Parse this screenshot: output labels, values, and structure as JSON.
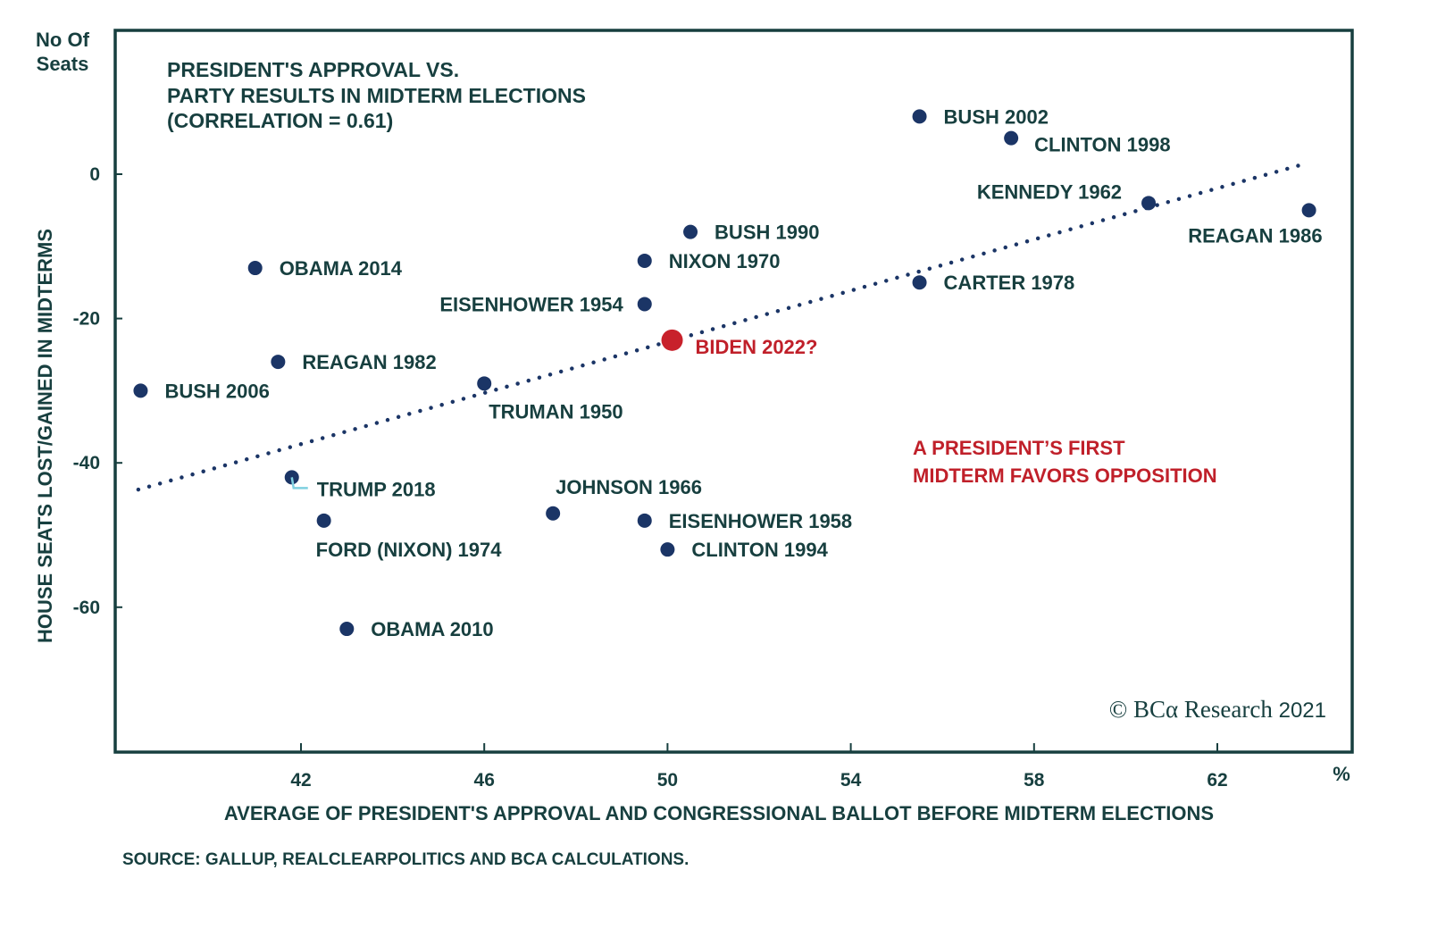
{
  "chart_data": {
    "type": "scatter",
    "title": [
      "PRESIDENT'S APPROVAL VS.",
      "PARTY RESULTS IN MIDTERM ELECTIONS",
      "(CORRELATION = 0.61)"
    ],
    "xlabel": "AVERAGE OF PRESIDENT'S APPROVAL AND CONGRESSIONAL BALLOT BEFORE MIDTERM ELECTIONS",
    "ylabel": "HOUSE SEATS LOST/GAINED IN MIDTERMS",
    "y_unit_label": [
      "No Of",
      "Seats"
    ],
    "x_unit_label": "%",
    "xlim": [
      37.9,
      65.0
    ],
    "ylim": [
      -80,
      20
    ],
    "xticks": [
      42,
      46,
      50,
      54,
      58,
      62
    ],
    "yticks": [
      0,
      -20,
      -40,
      -60
    ],
    "grid": false,
    "colors": {
      "point": "#1b3566",
      "highlight": "#c8212b",
      "text": "#173f3f",
      "annotation": "#c0202a",
      "frame": "#173f3f",
      "connector": "#7fd0e0"
    },
    "trendline": {
      "style": "dotted",
      "start": [
        38.45,
        -43.7
      ],
      "end": [
        63.95,
        1.5
      ]
    },
    "points": [
      {
        "label": "BUSH 2002",
        "x": 55.5,
        "y": 8,
        "highlight": false,
        "label_pos": "right"
      },
      {
        "label": "CLINTON 1998",
        "x": 57.5,
        "y": 5,
        "highlight": false,
        "label_pos": "right-below"
      },
      {
        "label": "KENNEDY 1962",
        "x": 60.5,
        "y": -4,
        "highlight": false,
        "label_pos": "left-above"
      },
      {
        "label": "REAGAN 1986",
        "x": 64.0,
        "y": -5,
        "highlight": false,
        "label_pos": "below-left"
      },
      {
        "label": "BUSH 1990",
        "x": 50.5,
        "y": -8,
        "highlight": false,
        "label_pos": "right"
      },
      {
        "label": "NIXON 1970",
        "x": 49.5,
        "y": -12,
        "highlight": false,
        "label_pos": "right"
      },
      {
        "label": "OBAMA 2014",
        "x": 41.0,
        "y": -13,
        "highlight": false,
        "label_pos": "right"
      },
      {
        "label": "CARTER 1978",
        "x": 55.5,
        "y": -15,
        "highlight": false,
        "label_pos": "right"
      },
      {
        "label": "EISENHOWER 1954",
        "x": 49.5,
        "y": -18,
        "highlight": false,
        "label_pos": "left"
      },
      {
        "label": "BIDEN 2022?",
        "x": 50.1,
        "y": -23,
        "highlight": true,
        "label_pos": "right-below"
      },
      {
        "label": "REAGAN 1982",
        "x": 41.5,
        "y": -26,
        "highlight": false,
        "label_pos": "right"
      },
      {
        "label": "TRUMAN 1950",
        "x": 46.0,
        "y": -29,
        "highlight": false,
        "label_pos": "below"
      },
      {
        "label": "BUSH 2006",
        "x": 38.5,
        "y": -30,
        "highlight": false,
        "label_pos": "right"
      },
      {
        "label": "TRUMP 2018",
        "x": 41.8,
        "y": -42,
        "highlight": false,
        "label_pos": "right-connector"
      },
      {
        "label": "JOHNSON 1966",
        "x": 47.5,
        "y": -47,
        "highlight": false,
        "label_pos": "above"
      },
      {
        "label": "FORD (NIXON) 1974",
        "x": 42.5,
        "y": -48,
        "highlight": false,
        "label_pos": "below"
      },
      {
        "label": "EISENHOWER 1958",
        "x": 49.5,
        "y": -48,
        "highlight": false,
        "label_pos": "right"
      },
      {
        "label": "CLINTON 1994",
        "x": 50.0,
        "y": -52,
        "highlight": false,
        "label_pos": "right"
      },
      {
        "label": "OBAMA 2010",
        "x": 43.0,
        "y": -63,
        "highlight": false,
        "label_pos": "right"
      }
    ],
    "annotations": [
      {
        "text": [
          "A PRESIDENT’S FIRST",
          "MIDTERM FAVORS OPPOSITION"
        ],
        "color": "#c0202a"
      }
    ],
    "source": "SOURCE: GALLUP, REALCLEARPOLITICS AND BCA CALCULATIONS.",
    "copyright": {
      "symbol": "©",
      "brand": "BCα",
      "name": "Research",
      "year": "2021"
    }
  }
}
